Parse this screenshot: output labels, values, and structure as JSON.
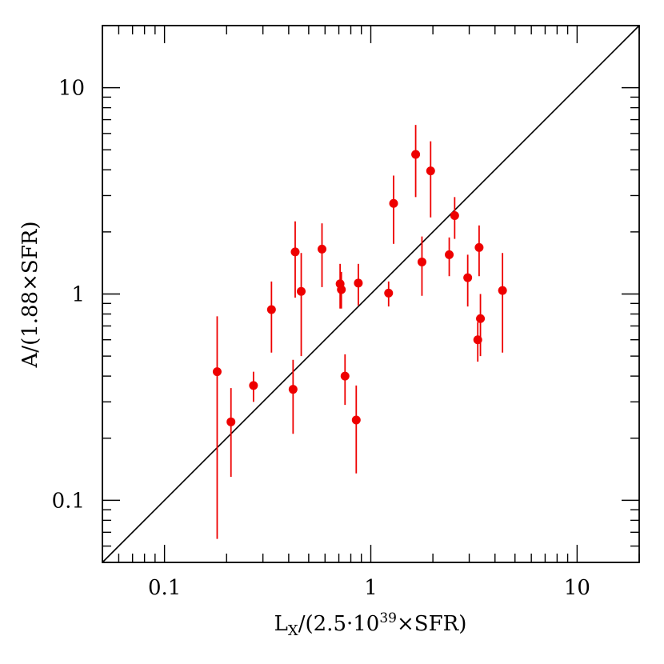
{
  "chart_data": {
    "type": "scatter",
    "xscale": "log",
    "yscale": "log",
    "xlim": [
      0.05,
      20
    ],
    "ylim": [
      0.05,
      20
    ],
    "xlabel": {
      "main": "L",
      "sub": "X",
      "mid": "/(2.5·10",
      "sup": "39",
      "tail": "×SFR)"
    },
    "ylabel": "A/(1.88×SFR)",
    "x_ticks": [
      {
        "value": 0.1,
        "label": "0.1"
      },
      {
        "value": 1,
        "label": "1"
      },
      {
        "value": 10,
        "label": "10"
      }
    ],
    "y_ticks": [
      {
        "value": 0.1,
        "label": "0.1"
      },
      {
        "value": 1,
        "label": "1"
      },
      {
        "value": 10,
        "label": "10"
      }
    ],
    "reference_line": {
      "label": "y = x",
      "from": [
        0.05,
        0.05
      ],
      "to": [
        20,
        20
      ]
    },
    "marker_color": "#ee0000",
    "points": [
      {
        "x": 0.18,
        "y": 0.42,
        "ylo": 0.065,
        "yhi": 0.78
      },
      {
        "x": 0.21,
        "y": 0.24,
        "ylo": 0.13,
        "yhi": 0.35
      },
      {
        "x": 0.27,
        "y": 0.36,
        "ylo": 0.3,
        "yhi": 0.42
      },
      {
        "x": 0.33,
        "y": 0.84,
        "ylo": 0.52,
        "yhi": 1.15
      },
      {
        "x": 0.42,
        "y": 0.345,
        "ylo": 0.21,
        "yhi": 0.48
      },
      {
        "x": 0.43,
        "y": 1.6,
        "ylo": 0.96,
        "yhi": 2.25
      },
      {
        "x": 0.46,
        "y": 1.03,
        "ylo": 0.5,
        "yhi": 1.58
      },
      {
        "x": 0.58,
        "y": 1.65,
        "ylo": 1.08,
        "yhi": 2.2
      },
      {
        "x": 0.71,
        "y": 1.12,
        "ylo": 0.85,
        "yhi": 1.4
      },
      {
        "x": 0.72,
        "y": 1.05,
        "ylo": 0.85,
        "yhi": 1.28
      },
      {
        "x": 0.75,
        "y": 0.4,
        "ylo": 0.29,
        "yhi": 0.51
      },
      {
        "x": 0.85,
        "y": 0.245,
        "ylo": 0.135,
        "yhi": 0.36
      },
      {
        "x": 0.87,
        "y": 1.13,
        "ylo": 0.88,
        "yhi": 1.4
      },
      {
        "x": 1.22,
        "y": 1.01,
        "ylo": 0.87,
        "yhi": 1.15
      },
      {
        "x": 1.29,
        "y": 2.75,
        "ylo": 1.75,
        "yhi": 3.75
      },
      {
        "x": 1.65,
        "y": 4.75,
        "ylo": 2.95,
        "yhi": 6.6
      },
      {
        "x": 1.77,
        "y": 1.43,
        "ylo": 0.98,
        "yhi": 1.9
      },
      {
        "x": 1.95,
        "y": 3.95,
        "ylo": 2.35,
        "yhi": 5.5
      },
      {
        "x": 2.4,
        "y": 1.55,
        "ylo": 1.22,
        "yhi": 1.88
      },
      {
        "x": 2.55,
        "y": 2.4,
        "ylo": 1.85,
        "yhi": 2.95
      },
      {
        "x": 2.95,
        "y": 1.2,
        "ylo": 0.87,
        "yhi": 1.55
      },
      {
        "x": 3.3,
        "y": 0.6,
        "ylo": 0.47,
        "yhi": 0.73
      },
      {
        "x": 3.35,
        "y": 1.68,
        "ylo": 1.22,
        "yhi": 2.15
      },
      {
        "x": 3.4,
        "y": 0.76,
        "ylo": 0.5,
        "yhi": 1.0
      },
      {
        "x": 4.35,
        "y": 1.04,
        "ylo": 0.52,
        "yhi": 1.58
      }
    ]
  }
}
